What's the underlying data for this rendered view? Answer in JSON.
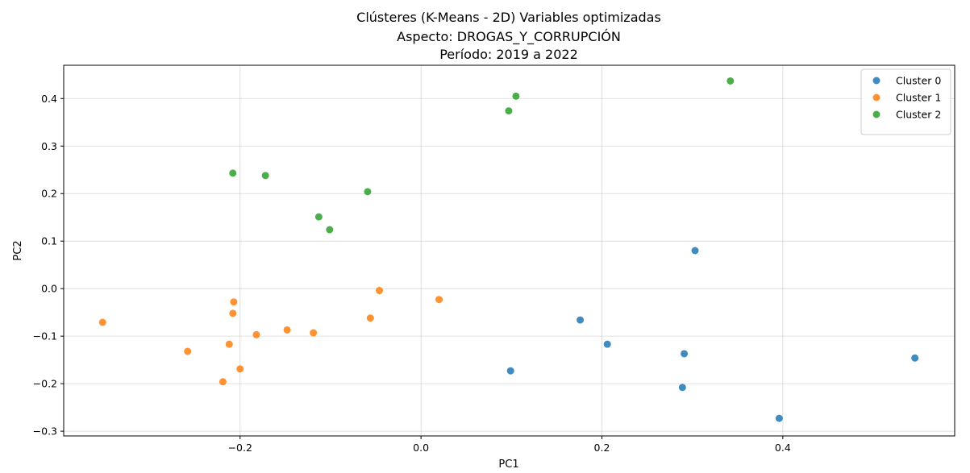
{
  "chart_data": {
    "type": "scatter",
    "title_lines": [
      "Clústeres (K-Means - 2D) Variables optimizadas",
      "Aspecto: DROGAS_Y_CORRUPCIÓN",
      "Período: 2019 a 2022"
    ],
    "xlabel": "PC1",
    "ylabel": "PC2",
    "xlim": [
      -0.395,
      0.59
    ],
    "ylim": [
      -0.31,
      0.47
    ],
    "xticks": [
      -0.2,
      0.0,
      0.2,
      0.4
    ],
    "xtick_labels": [
      "−0.2",
      "0.0",
      "0.2",
      "0.4"
    ],
    "yticks": [
      -0.3,
      -0.2,
      -0.1,
      0.0,
      0.1,
      0.2,
      0.3,
      0.4
    ],
    "ytick_labels": [
      "−0.3",
      "−0.2",
      "−0.1",
      "0.0",
      "0.1",
      "0.2",
      "0.3",
      "0.4"
    ],
    "grid": true,
    "legend_position": "top-right",
    "series": [
      {
        "name": "Cluster 0",
        "color": "#1f77b4",
        "points": [
          [
            0.303,
            0.08
          ],
          [
            0.176,
            -0.066
          ],
          [
            0.206,
            -0.117
          ],
          [
            0.291,
            -0.137
          ],
          [
            0.099,
            -0.173
          ],
          [
            0.289,
            -0.208
          ],
          [
            0.396,
            -0.273
          ],
          [
            0.546,
            -0.146
          ]
        ]
      },
      {
        "name": "Cluster 1",
        "color": "#ff7f0e",
        "points": [
          [
            -0.352,
            -0.071
          ],
          [
            -0.258,
            -0.132
          ],
          [
            -0.207,
            -0.028
          ],
          [
            -0.208,
            -0.052
          ],
          [
            -0.212,
            -0.117
          ],
          [
            -0.2,
            -0.169
          ],
          [
            -0.219,
            -0.196
          ],
          [
            -0.182,
            -0.097
          ],
          [
            -0.148,
            -0.087
          ],
          [
            -0.119,
            -0.093
          ],
          [
            -0.046,
            -0.004
          ],
          [
            -0.056,
            -0.062
          ],
          [
            0.02,
            -0.023
          ]
        ]
      },
      {
        "name": "Cluster 2",
        "color": "#2ca02c",
        "points": [
          [
            -0.208,
            0.243
          ],
          [
            -0.172,
            0.238
          ],
          [
            -0.113,
            0.151
          ],
          [
            -0.101,
            0.124
          ],
          [
            -0.059,
            0.204
          ],
          [
            0.097,
            0.374
          ],
          [
            0.105,
            0.405
          ],
          [
            0.342,
            0.437
          ]
        ]
      }
    ]
  }
}
